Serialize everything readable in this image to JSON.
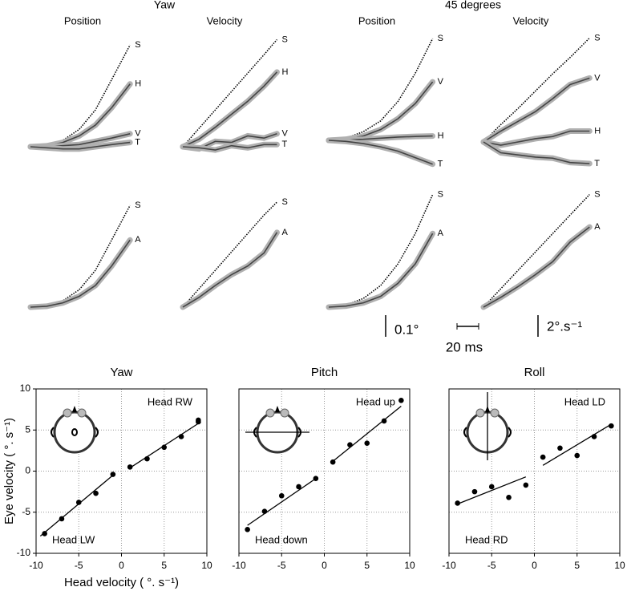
{
  "figure": {
    "group_titles": [
      "Yaw",
      "45 degrees"
    ],
    "scale_bars": [
      {
        "value": 0.1,
        "label": "0.1°"
      },
      {
        "value": 20,
        "label": "20 ms"
      },
      {
        "value": 2,
        "label": "2°.s⁻¹"
      }
    ]
  },
  "chart_data": [
    {
      "type": "line",
      "title": "Position",
      "x": [
        0,
        15,
        30,
        45,
        60,
        75,
        92
      ],
      "series": [
        {
          "name": "S",
          "color": "#000000",
          "values": [
            0,
            0.01,
            0.03,
            0.08,
            0.17,
            0.31,
            0.47
          ]
        },
        {
          "name": "H",
          "color": "#444444",
          "values": [
            0,
            0.004,
            0.02,
            0.05,
            0.1,
            0.18,
            0.29
          ]
        },
        {
          "name": "V",
          "color": "#444444",
          "values": [
            0,
            0,
            0.005,
            0.01,
            0.025,
            0.04,
            0.06
          ]
        },
        {
          "name": "T",
          "color": "#444444",
          "values": [
            0,
            -0.005,
            -0.01,
            -0.01,
            0,
            0.01,
            0.02
          ]
        }
      ]
    },
    {
      "type": "line",
      "title": "Velocity",
      "x": [
        0,
        15,
        30,
        45,
        60,
        75,
        87
      ],
      "series": [
        {
          "name": "S",
          "color": "#000000",
          "values": [
            0,
            1.7,
            3.4,
            5.1,
            6.8,
            8.5,
            9.9
          ]
        },
        {
          "name": "H",
          "color": "#444444",
          "values": [
            0,
            0.7,
            1.8,
            3.0,
            4.2,
            5.6,
            6.9
          ]
        },
        {
          "name": "V",
          "color": "#444444",
          "values": [
            0,
            -0.2,
            0.5,
            0.4,
            1.0,
            0.8,
            1.2
          ]
        },
        {
          "name": "T",
          "color": "#444444",
          "values": [
            0,
            -0.1,
            -0.3,
            0.1,
            -0.1,
            0.2,
            0.2
          ]
        }
      ]
    },
    {
      "type": "line",
      "title": "Position",
      "x": [
        0,
        16,
        32,
        48,
        64,
        80,
        96
      ],
      "series": [
        {
          "name": "S",
          "color": "#000000",
          "values": [
            0,
            0.01,
            0.04,
            0.09,
            0.18,
            0.31,
            0.47
          ]
        },
        {
          "name": "V",
          "color": "#444444",
          "values": [
            0,
            0.005,
            0.02,
            0.05,
            0.1,
            0.17,
            0.27
          ]
        },
        {
          "name": "H",
          "color": "#444444",
          "values": [
            0,
            0.002,
            0.005,
            0.01,
            0.015,
            0.018,
            0.02
          ]
        },
        {
          "name": "T",
          "color": "#444444",
          "values": [
            0,
            -0.005,
            -0.015,
            -0.03,
            -0.05,
            -0.08,
            -0.11
          ]
        }
      ]
    },
    {
      "type": "line",
      "title": "Velocity",
      "x": [
        0,
        16,
        32,
        48,
        64,
        80,
        98
      ],
      "series": [
        {
          "name": "S",
          "color": "#000000",
          "values": [
            0,
            1.6,
            3.1,
            4.7,
            6.3,
            7.8,
            9.6
          ]
        },
        {
          "name": "V",
          "color": "#444444",
          "values": [
            0,
            1.0,
            1.9,
            2.8,
            4.0,
            5.3,
            5.9
          ]
        },
        {
          "name": "H",
          "color": "#444444",
          "values": [
            0,
            -0.3,
            0,
            0.3,
            0.5,
            1.0,
            1.0
          ]
        },
        {
          "name": "T",
          "color": "#444444",
          "values": [
            0,
            -1.0,
            -1.2,
            -1.4,
            -1.5,
            -1.9,
            -2.0
          ]
        }
      ]
    },
    {
      "type": "line",
      "x": [
        0,
        15,
        30,
        45,
        60,
        75,
        92
      ],
      "series": [
        {
          "name": "S",
          "color": "#000000",
          "values": [
            0,
            0.01,
            0.03,
            0.08,
            0.17,
            0.31,
            0.47
          ]
        },
        {
          "name": "A",
          "color": "#444444",
          "values": [
            0,
            0.004,
            0.02,
            0.05,
            0.1,
            0.19,
            0.31
          ]
        }
      ]
    },
    {
      "type": "line",
      "x": [
        0,
        15,
        30,
        45,
        60,
        75,
        87
      ],
      "series": [
        {
          "name": "S",
          "color": "#000000",
          "values": [
            0,
            1.7,
            3.4,
            5.1,
            6.8,
            8.5,
            9.7
          ]
        },
        {
          "name": "A",
          "color": "#444444",
          "values": [
            0,
            0.9,
            2.0,
            3.0,
            3.8,
            5.0,
            6.9
          ]
        }
      ]
    },
    {
      "type": "line",
      "x": [
        0,
        16,
        32,
        48,
        64,
        80,
        96
      ],
      "series": [
        {
          "name": "S",
          "color": "#000000",
          "values": [
            0,
            0.01,
            0.04,
            0.1,
            0.2,
            0.34,
            0.52
          ]
        },
        {
          "name": "A",
          "color": "#444444",
          "values": [
            0,
            0.005,
            0.02,
            0.05,
            0.11,
            0.2,
            0.34
          ]
        }
      ]
    },
    {
      "type": "line",
      "x": [
        0,
        16,
        32,
        48,
        64,
        80,
        98
      ],
      "series": [
        {
          "name": "S",
          "color": "#000000",
          "values": [
            0,
            1.7,
            3.4,
            5.1,
            6.8,
            8.5,
            10.4
          ]
        },
        {
          "name": "A",
          "color": "#444444",
          "values": [
            0,
            0.9,
            1.9,
            3.0,
            4.2,
            6.0,
            7.4
          ]
        }
      ]
    },
    {
      "type": "scatter",
      "title": "Yaw",
      "xlabel": "Head velocity ( °. s⁻¹)",
      "ylabel": "Eye velocity ( °. s⁻¹)",
      "xlim": [
        -10,
        10
      ],
      "ylim": [
        -10,
        10
      ],
      "xticks": [
        -10,
        -5,
        0,
        5,
        10
      ],
      "yticks": [
        -10,
        -5,
        0,
        5,
        10
      ],
      "grid": true,
      "color": "#000000",
      "x": [
        -9,
        -7,
        -5,
        -3,
        -1,
        1,
        3,
        5,
        7,
        9,
        9
      ],
      "values": [
        -7.6,
        -5.8,
        -3.8,
        -2.7,
        -0.4,
        0.5,
        1.5,
        2.9,
        4.2,
        6.0,
        6.2
      ],
      "fits": [
        {
          "x": [
            -9.5,
            -1
          ],
          "y": [
            -7.9,
            -0.5
          ]
        },
        {
          "x": [
            1,
            9.3
          ],
          "y": [
            0.4,
            6.0
          ]
        }
      ],
      "annotations": [
        "Head RW",
        "Head LW"
      ]
    },
    {
      "type": "scatter",
      "title": "Pitch",
      "xlim": [
        -10,
        10
      ],
      "ylim": [
        -10,
        10
      ],
      "xticks": [
        -10,
        -5,
        0,
        5,
        10
      ],
      "yticks": [
        -10,
        -5,
        0,
        5,
        10
      ],
      "grid": true,
      "color": "#000000",
      "x": [
        -9,
        -7,
        -5,
        -3,
        -1,
        1,
        3,
        5,
        7,
        9
      ],
      "values": [
        -7.1,
        -4.9,
        -3.0,
        -1.9,
        -0.9,
        1.1,
        3.2,
        3.4,
        6.1,
        8.6
      ],
      "fits": [
        {
          "x": [
            -9,
            -1
          ],
          "y": [
            -6.6,
            -0.9
          ]
        },
        {
          "x": [
            1,
            9
          ],
          "y": [
            1.2,
            7.9
          ]
        }
      ],
      "annotations": [
        "Head up",
        "Head down"
      ]
    },
    {
      "type": "scatter",
      "title": "Roll",
      "xlim": [
        -10,
        10
      ],
      "ylim": [
        -10,
        10
      ],
      "xticks": [
        -10,
        -5,
        0,
        5,
        10
      ],
      "yticks": [
        -10,
        -5,
        0,
        5,
        10
      ],
      "grid": true,
      "color": "#000000",
      "x": [
        -9,
        -7,
        -5,
        -3,
        -1,
        1,
        3,
        5,
        7,
        9
      ],
      "values": [
        -3.9,
        -2.5,
        -1.9,
        -3.2,
        -1.7,
        1.7,
        2.8,
        1.9,
        4.2,
        5.5
      ],
      "fits": [
        {
          "x": [
            -9,
            -1
          ],
          "y": [
            -4.0,
            -0.7
          ]
        },
        {
          "x": [
            1,
            9
          ],
          "y": [
            0.7,
            5.7
          ]
        }
      ],
      "annotations": [
        "Head LD",
        "Head RD"
      ]
    }
  ]
}
